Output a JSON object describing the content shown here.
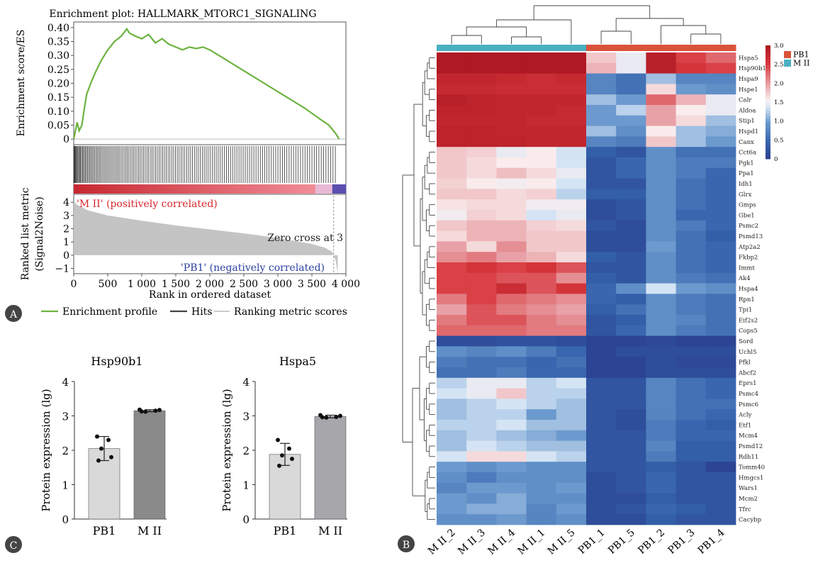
{
  "panels": {
    "A": {
      "letter": "A"
    },
    "B": {
      "letter": "B"
    },
    "C": {
      "letter": "C"
    }
  },
  "gsea": {
    "title": "Enrichment plot: HALLMARK_MTORC1_SIGNALING",
    "es_ylabel": "Enrichment score/ES",
    "metric_ylabel_1": "Ranked list metric",
    "metric_ylabel_2": "(Signal2Noise)",
    "xlabel": "Rank in ordered dataset",
    "pos_label": "'M II' (positively correlated)",
    "neg_label": "'PB1' (negatively correlated)",
    "zero_cross": "Zero cross at 3",
    "legend": [
      "Enrichment profile",
      "Hits",
      "Ranking metric scores"
    ],
    "colors": {
      "profile": "#6db33f",
      "hits": "#444444",
      "metric": "#bdbdbd"
    }
  },
  "chart_data": [
    {
      "type": "line",
      "title": "Enrichment plot: HALLMARK_MTORC1_SIGNALING",
      "xlabel": "Rank in ordered dataset",
      "ylabel": "Enrichment score/ES",
      "xlim": [
        0,
        4000
      ],
      "ylim": [
        -0.02,
        0.42
      ],
      "x_ticks": [
        "0",
        "500",
        "1 000",
        "1 500",
        "2 000",
        "2 500",
        "3 000",
        "3 500",
        "4 000"
      ],
      "y_ticks": [
        "0",
        "0.05",
        "0.10",
        "0.15",
        "0.20",
        "0.25",
        "0.30",
        "0.35",
        "0.40"
      ],
      "series": [
        {
          "name": "Enrichment profile",
          "x": [
            0,
            50,
            80,
            120,
            150,
            190,
            250,
            320,
            400,
            500,
            600,
            700,
            780,
            820,
            900,
            1000,
            1100,
            1200,
            1300,
            1400,
            1500,
            1600,
            1700,
            1800,
            1900,
            2000,
            2200,
            2400,
            2600,
            2800,
            3000,
            3200,
            3400,
            3600,
            3750,
            3850,
            3900
          ],
          "y": [
            0,
            0.06,
            0.03,
            0.05,
            0.1,
            0.16,
            0.2,
            0.24,
            0.28,
            0.32,
            0.35,
            0.37,
            0.395,
            0.38,
            0.37,
            0.36,
            0.375,
            0.345,
            0.36,
            0.34,
            0.33,
            0.32,
            0.33,
            0.325,
            0.33,
            0.32,
            0.29,
            0.26,
            0.23,
            0.2,
            0.17,
            0.14,
            0.11,
            0.075,
            0.05,
            0.02,
            0
          ]
        }
      ],
      "metric_ticks": [
        "−1",
        "0",
        "1",
        "2",
        "3",
        "4"
      ],
      "metric_ylim": [
        -1.4,
        4.6
      ],
      "metric_curve": {
        "x": [
          0,
          50,
          200,
          500,
          1000,
          1500,
          2000,
          2500,
          3000,
          3500,
          3700,
          3800,
          3850,
          3880
        ],
        "y": [
          4.1,
          3.8,
          3.4,
          3.0,
          2.6,
          2.25,
          1.95,
          1.65,
          1.3,
          0.85,
          0.55,
          0.25,
          -0.4,
          -1.4
        ]
      },
      "legend_position": "bottom"
    },
    {
      "type": "heatmap",
      "columns": [
        "M II_2",
        "M II_3",
        "M II_4",
        "M II_1",
        "M II_5",
        "PB1_1",
        "PB1_5",
        "PB1_2",
        "PB1_3",
        "PB1_4"
      ],
      "groups": [
        "M II",
        "M II",
        "M II",
        "M II",
        "M II",
        "PB1",
        "PB1",
        "PB1",
        "PB1",
        "PB1"
      ],
      "rows": [
        "Hspa5",
        "Hsp90b1",
        "Hspa9",
        "Hspe1",
        "Calr",
        "Aldoa",
        "Stip1",
        "Hspd1",
        "Canx",
        "Cct6a",
        "Pgk1",
        "Ppa1",
        "Idh1",
        "Glrx",
        "Gmps",
        "Gbe1",
        "Psmc2",
        "Psmd13",
        "Atp2a2",
        "Fkbp2",
        "Immt",
        "Ak4",
        "Hspa4",
        "Rpn1",
        "Tpi1",
        "Eif2s2",
        "Cops5",
        "Sord",
        "Uchl5",
        "Pfkl",
        "Abcf2",
        "Eprs1",
        "Psmc4",
        "Psmc6",
        "Acly",
        "Etf1",
        "Mcm4",
        "Psmd12",
        "Rdh11",
        "Tomm40",
        "Hmgcs1",
        "Wars1",
        "Mcm2",
        "Tfrc",
        "Cacybp"
      ],
      "values": [
        [
          3.0,
          3.0,
          3.0,
          3.0,
          3.0,
          1.8,
          1.5,
          2.9,
          2.5,
          2.3
        ],
        [
          3.0,
          3.0,
          3.0,
          3.0,
          3.0,
          1.9,
          1.5,
          2.9,
          2.6,
          2.5
        ],
        [
          2.8,
          2.8,
          2.75,
          2.7,
          2.75,
          0.8,
          0.6,
          1.2,
          0.8,
          0.8
        ],
        [
          2.75,
          2.75,
          2.7,
          2.7,
          2.7,
          0.8,
          0.6,
          1.7,
          1.0,
          0.9
        ],
        [
          2.9,
          2.85,
          2.8,
          2.8,
          2.8,
          1.2,
          1.0,
          2.3,
          1.9,
          1.5
        ],
        [
          2.85,
          2.85,
          2.8,
          2.8,
          2.75,
          1.0,
          1.3,
          2.0,
          1.6,
          1.5
        ],
        [
          2.8,
          2.8,
          2.8,
          2.75,
          2.75,
          1.0,
          1.0,
          2.0,
          1.7,
          1.2
        ],
        [
          2.85,
          2.85,
          2.8,
          2.8,
          2.8,
          1.2,
          0.9,
          1.6,
          1.2,
          1.1
        ],
        [
          2.85,
          2.85,
          2.85,
          2.8,
          2.8,
          0.8,
          0.7,
          1.8,
          1.2,
          1.0
        ],
        [
          1.8,
          1.75,
          1.5,
          1.6,
          1.4,
          0.4,
          0.3,
          0.9,
          0.6,
          0.6
        ],
        [
          1.8,
          1.7,
          1.6,
          1.6,
          1.4,
          0.3,
          0.5,
          0.9,
          0.7,
          0.7
        ],
        [
          1.8,
          1.7,
          1.85,
          1.7,
          1.5,
          0.3,
          0.5,
          0.9,
          0.7,
          0.5
        ],
        [
          1.75,
          1.6,
          1.55,
          1.6,
          1.4,
          0.3,
          0.3,
          0.9,
          0.6,
          0.5
        ],
        [
          1.8,
          1.8,
          1.7,
          1.75,
          1.3,
          0.4,
          0.4,
          0.9,
          0.6,
          0.5
        ],
        [
          1.65,
          1.7,
          1.7,
          1.55,
          1.55,
          0.2,
          0.3,
          0.9,
          0.6,
          0.5
        ],
        [
          1.55,
          1.75,
          1.7,
          1.4,
          1.5,
          0.2,
          0.3,
          0.9,
          0.5,
          0.5
        ],
        [
          1.8,
          1.9,
          1.9,
          1.75,
          1.7,
          0.3,
          0.2,
          0.9,
          0.7,
          0.5
        ],
        [
          1.7,
          1.9,
          1.9,
          1.8,
          1.8,
          0.2,
          0.2,
          0.9,
          0.6,
          0.4
        ],
        [
          2.0,
          1.7,
          2.1,
          1.8,
          1.8,
          0.2,
          0.2,
          1.0,
          0.6,
          0.5
        ],
        [
          2.1,
          2.2,
          2.0,
          1.9,
          1.7,
          0.4,
          0.3,
          0.9,
          0.6,
          0.5
        ],
        [
          2.5,
          2.6,
          2.5,
          2.6,
          2.4,
          0.3,
          0.3,
          0.9,
          0.6,
          0.5
        ],
        [
          2.5,
          2.5,
          2.4,
          2.4,
          2.1,
          0.4,
          0.3,
          0.9,
          0.7,
          0.6
        ],
        [
          2.5,
          2.5,
          2.7,
          2.4,
          2.6,
          0.5,
          0.9,
          1.4,
          1.0,
          0.9
        ],
        [
          2.2,
          2.5,
          2.3,
          2.2,
          2.1,
          0.5,
          0.4,
          0.9,
          0.7,
          0.6
        ],
        [
          2.0,
          2.4,
          2.2,
          2.1,
          2.0,
          0.4,
          0.6,
          0.9,
          0.7,
          0.6
        ],
        [
          2.2,
          2.4,
          2.4,
          2.2,
          2.1,
          0.3,
          0.4,
          0.9,
          0.8,
          0.6
        ],
        [
          2.3,
          2.3,
          2.3,
          2.2,
          2.2,
          0.3,
          0.5,
          0.9,
          0.7,
          0.6
        ],
        [
          0.2,
          0.2,
          0.25,
          0.25,
          0.2,
          0.1,
          0.1,
          0.15,
          0.1,
          0.1
        ],
        [
          0.9,
          0.8,
          0.9,
          0.7,
          0.5,
          0.1,
          0.2,
          0.2,
          0.2,
          0.2
        ],
        [
          0.7,
          0.6,
          0.6,
          0.5,
          0.6,
          0.1,
          0.1,
          0.2,
          0.15,
          0.15
        ],
        [
          0.6,
          0.6,
          0.7,
          0.5,
          0.5,
          0.1,
          0.1,
          0.2,
          0.2,
          0.2
        ],
        [
          1.3,
          1.5,
          1.5,
          1.3,
          1.4,
          0.3,
          0.3,
          0.8,
          0.6,
          0.5
        ],
        [
          1.4,
          1.5,
          1.8,
          1.3,
          1.3,
          0.3,
          0.3,
          0.8,
          0.6,
          0.5
        ],
        [
          1.2,
          1.3,
          1.4,
          1.3,
          1.2,
          0.3,
          0.3,
          0.8,
          0.6,
          0.6
        ],
        [
          1.2,
          1.3,
          1.3,
          1.0,
          1.2,
          0.3,
          0.2,
          0.8,
          0.6,
          0.5
        ],
        [
          1.3,
          1.3,
          1.4,
          1.2,
          1.2,
          0.3,
          0.2,
          0.7,
          0.5,
          0.4
        ],
        [
          1.2,
          1.3,
          1.2,
          1.1,
          1.0,
          0.3,
          0.3,
          0.7,
          0.5,
          0.5
        ],
        [
          1.2,
          1.4,
          1.3,
          1.2,
          1.2,
          0.3,
          0.3,
          0.8,
          0.4,
          0.4
        ],
        [
          1.4,
          1.7,
          1.7,
          1.4,
          1.3,
          0.3,
          0.3,
          0.7,
          0.4,
          0.4
        ],
        [
          1.0,
          0.9,
          1.0,
          0.9,
          0.9,
          0.3,
          0.3,
          0.4,
          0.3,
          0.1
        ],
        [
          0.9,
          0.7,
          0.9,
          0.9,
          0.9,
          0.2,
          0.3,
          0.5,
          0.3,
          0.3
        ],
        [
          0.8,
          1.0,
          1.0,
          0.9,
          1.0,
          0.2,
          0.3,
          0.5,
          0.3,
          0.3
        ],
        [
          1.0,
          0.9,
          1.1,
          0.9,
          0.9,
          0.2,
          0.2,
          0.4,
          0.3,
          0.3
        ],
        [
          1.0,
          1.1,
          1.1,
          0.8,
          1.0,
          0.2,
          0.3,
          0.5,
          0.4,
          0.3
        ],
        [
          0.9,
          0.9,
          1.0,
          0.8,
          0.9,
          0.2,
          0.2,
          0.4,
          0.3,
          0.3
        ]
      ],
      "color_range": [
        0,
        3.0
      ],
      "colorbar_ticks": [
        "0",
        "0.5",
        "1.0",
        "1.5",
        "2.0",
        "2.5",
        "3.0"
      ],
      "legend": [
        {
          "name": "PB1",
          "color": "#d9533a"
        },
        {
          "name": "M II",
          "color": "#4ab0c1"
        }
      ],
      "legend_position": "top-right"
    },
    {
      "type": "bar",
      "title": "Hsp90b1",
      "ylabel": "Protein expression (lg)",
      "categories": [
        "PB1",
        "M II"
      ],
      "values": [
        2.05,
        3.15
      ],
      "errors": [
        0.35,
        0.03
      ],
      "points": [
        [
          2.4,
          2.3,
          2.05,
          1.8,
          1.7
        ],
        [
          3.18,
          3.15,
          3.12,
          3.17,
          3.13
        ]
      ],
      "ylim": [
        0,
        4
      ],
      "y_ticks": [
        "0",
        "1",
        "2",
        "3",
        "4"
      ],
      "bar_colors": [
        "#d9d9d9",
        "#8a8a8a"
      ]
    },
    {
      "type": "bar",
      "title": "Hspa5",
      "ylabel": "Protein expression (lg)",
      "categories": [
        "PB1",
        "M II"
      ],
      "values": [
        1.88,
        2.98
      ],
      "errors": [
        0.32,
        0.04
      ],
      "points": [
        [
          2.3,
          2.05,
          1.85,
          1.75,
          1.55
        ],
        [
          3.02,
          2.97,
          2.95,
          3.0,
          2.96
        ]
      ],
      "ylim": [
        0,
        4
      ],
      "y_ticks": [
        "0",
        "1",
        "2",
        "3",
        "4"
      ],
      "bar_colors": [
        "#d9d9d9",
        "#a6a6ab"
      ]
    }
  ]
}
